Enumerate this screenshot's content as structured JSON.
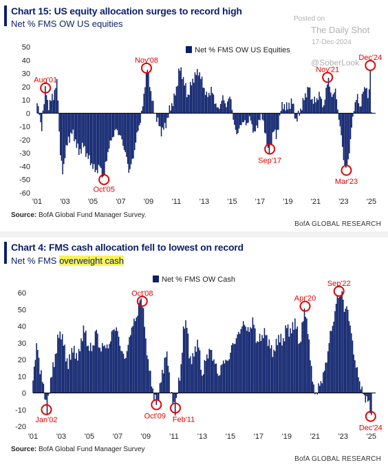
{
  "watermark": {
    "posted_on": "Posted on",
    "site": "The Daily Shot",
    "date": "17-Dec-2024",
    "handle": "@SoberLook"
  },
  "colors": {
    "bar": "#0a1f6b",
    "annotation": "#e00000",
    "title": "#0a1f6b",
    "highlight": "#f7f35a"
  },
  "chart1": {
    "title": "Chart 15: US equity allocation surges to record high",
    "subtitle": "Net % FMS OW US equities",
    "source_label": "Source:",
    "source_text": "BofA Global Fund Manager Survey.",
    "brand": "BofA GLOBAL RESEARCH"
  },
  "chart2": {
    "title": "Chart 4: FMS cash allocation fell to lowest on record",
    "subtitle_plain": "Net % FMS ",
    "subtitle_highlight": "overweight cash",
    "source_label": "Source:",
    "source_text": "BofA Global Fund Manager Survey",
    "brand": "BofA GLOBAL RESEARCH"
  },
  "chart_data": [
    {
      "type": "bar",
      "title": "Chart 15: US equity allocation surges to record high",
      "subtitle": "Net % FMS OW US equities",
      "legend": "Net % FMS OW US Equities",
      "legend_position": "top-right",
      "x_range": [
        2001.0,
        2025.3
      ],
      "ylim": [
        -60,
        50
      ],
      "yticks": [
        50,
        40,
        30,
        20,
        10,
        0,
        -10,
        -20,
        -30,
        -40,
        -50,
        -60
      ],
      "xticks": [
        "'01",
        "'03",
        "'05",
        "'07",
        "'09",
        "'11",
        "'13",
        "'15",
        "'17",
        "'19",
        "'21",
        "'23",
        "'25"
      ],
      "xtick_years": [
        2001,
        2003,
        2005,
        2007,
        2009,
        2011,
        2013,
        2015,
        2017,
        2019,
        2021,
        2023,
        2025
      ],
      "grid": false,
      "series": [
        {
          "keypoints": [
            [
              2001.0,
              10
            ],
            [
              2001.2,
              -2
            ],
            [
              2001.3,
              -18
            ],
            [
              2001.4,
              0
            ],
            [
              2001.6,
              19
            ],
            [
              2001.8,
              5
            ],
            [
              2002.0,
              10
            ],
            [
              2002.2,
              14
            ],
            [
              2002.4,
              24
            ],
            [
              2002.5,
              12
            ],
            [
              2002.6,
              -20
            ],
            [
              2002.8,
              -46
            ],
            [
              2002.9,
              -42
            ],
            [
              2003.0,
              -30
            ],
            [
              2003.2,
              -22
            ],
            [
              2003.5,
              -14
            ],
            [
              2003.8,
              -22
            ],
            [
              2004.0,
              -30
            ],
            [
              2004.3,
              -24
            ],
            [
              2004.6,
              -32
            ],
            [
              2004.9,
              -38
            ],
            [
              2005.2,
              -44
            ],
            [
              2005.5,
              -40
            ],
            [
              2005.8,
              -50
            ],
            [
              2005.9,
              -40
            ],
            [
              2006.1,
              -28
            ],
            [
              2006.4,
              -18
            ],
            [
              2006.7,
              -12
            ],
            [
              2007.0,
              -18
            ],
            [
              2007.3,
              -28
            ],
            [
              2007.6,
              -44
            ],
            [
              2007.9,
              -34
            ],
            [
              2008.1,
              -20
            ],
            [
              2008.4,
              -6
            ],
            [
              2008.6,
              6
            ],
            [
              2008.8,
              28
            ],
            [
              2008.9,
              34
            ],
            [
              2009.0,
              28
            ],
            [
              2009.2,
              14
            ],
            [
              2009.4,
              2
            ],
            [
              2009.6,
              -4
            ],
            [
              2009.9,
              -14
            ],
            [
              2010.2,
              -10
            ],
            [
              2010.5,
              2
            ],
            [
              2010.8,
              10
            ],
            [
              2011.0,
              18
            ],
            [
              2011.2,
              34
            ],
            [
              2011.4,
              30
            ],
            [
              2011.6,
              22
            ],
            [
              2011.8,
              12
            ],
            [
              2012.0,
              20
            ],
            [
              2012.3,
              28
            ],
            [
              2012.6,
              32
            ],
            [
              2012.9,
              22
            ],
            [
              2013.2,
              12
            ],
            [
              2013.5,
              18
            ],
            [
              2013.8,
              8
            ],
            [
              2014.0,
              2
            ],
            [
              2014.3,
              12
            ],
            [
              2014.6,
              6
            ],
            [
              2014.9,
              14
            ],
            [
              2015.1,
              -8
            ],
            [
              2015.4,
              -16
            ],
            [
              2015.7,
              -6
            ],
            [
              2016.0,
              -8
            ],
            [
              2016.3,
              -4
            ],
            [
              2016.6,
              -16
            ],
            [
              2016.9,
              -6
            ],
            [
              2017.2,
              -2
            ],
            [
              2017.4,
              -18
            ],
            [
              2017.6,
              -28
            ],
            [
              2017.8,
              -26
            ],
            [
              2018.0,
              -10
            ],
            [
              2018.2,
              -20
            ],
            [
              2018.5,
              4
            ],
            [
              2018.8,
              6
            ],
            [
              2019.0,
              4
            ],
            [
              2019.3,
              10
            ],
            [
              2019.6,
              -6
            ],
            [
              2019.9,
              2
            ],
            [
              2020.2,
              12
            ],
            [
              2020.5,
              20
            ],
            [
              2020.8,
              8
            ],
            [
              2021.0,
              10
            ],
            [
              2021.3,
              14
            ],
            [
              2021.6,
              4
            ],
            [
              2021.8,
              22
            ],
            [
              2021.9,
              28
            ],
            [
              2022.1,
              12
            ],
            [
              2022.4,
              18
            ],
            [
              2022.7,
              -6
            ],
            [
              2022.9,
              -24
            ],
            [
              2023.0,
              -34
            ],
            [
              2023.2,
              -44
            ],
            [
              2023.4,
              -30
            ],
            [
              2023.6,
              -10
            ],
            [
              2023.8,
              8
            ],
            [
              2024.0,
              12
            ],
            [
              2024.2,
              4
            ],
            [
              2024.4,
              16
            ],
            [
              2024.6,
              22
            ],
            [
              2024.8,
              8
            ],
            [
              2024.92,
              36
            ],
            [
              2025.0,
              0
            ]
          ]
        }
      ],
      "annotations": [
        {
          "label": "Aug'01",
          "x": 2001.6,
          "y": 19
        },
        {
          "label": "Oct'05",
          "x": 2005.8,
          "y": -50
        },
        {
          "label": "Nov'08",
          "x": 2008.85,
          "y": 34
        },
        {
          "label": "Sep'17",
          "x": 2017.7,
          "y": -27
        },
        {
          "label": "Nov'21",
          "x": 2021.85,
          "y": 27
        },
        {
          "label": "Mar'23",
          "x": 2023.2,
          "y": -43
        },
        {
          "label": "Dec'24",
          "x": 2024.92,
          "y": 36
        }
      ]
    },
    {
      "type": "bar",
      "title": "Chart 4: FMS cash allocation fell to lowest on record",
      "subtitle": "Net % FMS overweight cash",
      "legend": "Net % FMS OW Cash",
      "legend_position": "top-left",
      "x_range": [
        2001.0,
        2025.3
      ],
      "ylim": [
        -20,
        70
      ],
      "yticks": [
        60,
        50,
        40,
        30,
        20,
        10,
        0,
        -10,
        -20
      ],
      "xticks": [
        "'01",
        "'03",
        "'05",
        "'07",
        "'09",
        "'11",
        "'13",
        "'15",
        "'17",
        "'19",
        "'21",
        "'23",
        "'25"
      ],
      "xtick_years": [
        2001,
        2003,
        2005,
        2007,
        2009,
        2011,
        2013,
        2015,
        2017,
        2019,
        2021,
        2023,
        2025
      ],
      "grid": false,
      "series": [
        {
          "keypoints": [
            [
              2001.0,
              10
            ],
            [
              2001.3,
              30
            ],
            [
              2001.5,
              14
            ],
            [
              2001.8,
              2
            ],
            [
              2002.0,
              -12
            ],
            [
              2002.2,
              6
            ],
            [
              2002.5,
              18
            ],
            [
              2002.8,
              34
            ],
            [
              2003.0,
              36
            ],
            [
              2003.2,
              28
            ],
            [
              2003.5,
              16
            ],
            [
              2003.8,
              28
            ],
            [
              2004.0,
              22
            ],
            [
              2004.3,
              24
            ],
            [
              2004.6,
              40
            ],
            [
              2004.9,
              28
            ],
            [
              2005.2,
              26
            ],
            [
              2005.5,
              38
            ],
            [
              2005.8,
              24
            ],
            [
              2006.0,
              30
            ],
            [
              2006.3,
              26
            ],
            [
              2006.6,
              36
            ],
            [
              2006.9,
              40
            ],
            [
              2007.2,
              28
            ],
            [
              2007.5,
              20
            ],
            [
              2007.8,
              30
            ],
            [
              2008.0,
              40
            ],
            [
              2008.3,
              44
            ],
            [
              2008.6,
              56
            ],
            [
              2008.8,
              54
            ],
            [
              2009.0,
              30
            ],
            [
              2009.2,
              18
            ],
            [
              2009.4,
              6
            ],
            [
              2009.6,
              -2
            ],
            [
              2009.8,
              -8
            ],
            [
              2010.0,
              4
            ],
            [
              2010.2,
              12
            ],
            [
              2010.4,
              24
            ],
            [
              2010.6,
              18
            ],
            [
              2010.8,
              -2
            ],
            [
              2011.1,
              -10
            ],
            [
              2011.3,
              4
            ],
            [
              2011.5,
              16
            ],
            [
              2011.7,
              40
            ],
            [
              2011.9,
              44
            ],
            [
              2012.1,
              20
            ],
            [
              2012.4,
              22
            ],
            [
              2012.7,
              32
            ],
            [
              2013.0,
              10
            ],
            [
              2013.3,
              22
            ],
            [
              2013.6,
              26
            ],
            [
              2013.9,
              18
            ],
            [
              2014.2,
              10
            ],
            [
              2014.5,
              20
            ],
            [
              2014.8,
              18
            ],
            [
              2015.1,
              28
            ],
            [
              2015.4,
              32
            ],
            [
              2015.7,
              38
            ],
            [
              2016.0,
              42
            ],
            [
              2016.3,
              36
            ],
            [
              2016.6,
              44
            ],
            [
              2016.9,
              30
            ],
            [
              2017.2,
              34
            ],
            [
              2017.5,
              36
            ],
            [
              2017.8,
              28
            ],
            [
              2018.1,
              24
            ],
            [
              2018.4,
              34
            ],
            [
              2018.7,
              30
            ],
            [
              2019.0,
              40
            ],
            [
              2019.3,
              36
            ],
            [
              2019.6,
              44
            ],
            [
              2019.9,
              28
            ],
            [
              2020.1,
              40
            ],
            [
              2020.3,
              52
            ],
            [
              2020.5,
              36
            ],
            [
              2020.7,
              20
            ],
            [
              2020.9,
              2
            ],
            [
              2021.1,
              0
            ],
            [
              2021.4,
              6
            ],
            [
              2021.7,
              14
            ],
            [
              2021.9,
              24
            ],
            [
              2022.1,
              36
            ],
            [
              2022.4,
              46
            ],
            [
              2022.6,
              60
            ],
            [
              2022.8,
              56
            ],
            [
              2022.95,
              62
            ],
            [
              2023.1,
              48
            ],
            [
              2023.3,
              52
            ],
            [
              2023.5,
              40
            ],
            [
              2023.7,
              28
            ],
            [
              2023.9,
              16
            ],
            [
              2024.1,
              10
            ],
            [
              2024.3,
              2
            ],
            [
              2024.5,
              -2
            ],
            [
              2024.7,
              -4
            ],
            [
              2024.9,
              -8
            ],
            [
              2025.0,
              -14
            ]
          ]
        }
      ],
      "annotations": [
        {
          "label": "Jan'02",
          "x": 2001.95,
          "y": -10
        },
        {
          "label": "Oct'08",
          "x": 2008.75,
          "y": 55
        },
        {
          "label": "Oct'09",
          "x": 2009.75,
          "y": -7
        },
        {
          "label": "Feb'11",
          "x": 2011.1,
          "y": -9
        },
        {
          "label": "Apr'20",
          "x": 2020.3,
          "y": 52
        },
        {
          "label": "Sep'22",
          "x": 2022.7,
          "y": 61
        },
        {
          "label": "Dec'24",
          "x": 2024.95,
          "y": -14
        }
      ]
    }
  ]
}
